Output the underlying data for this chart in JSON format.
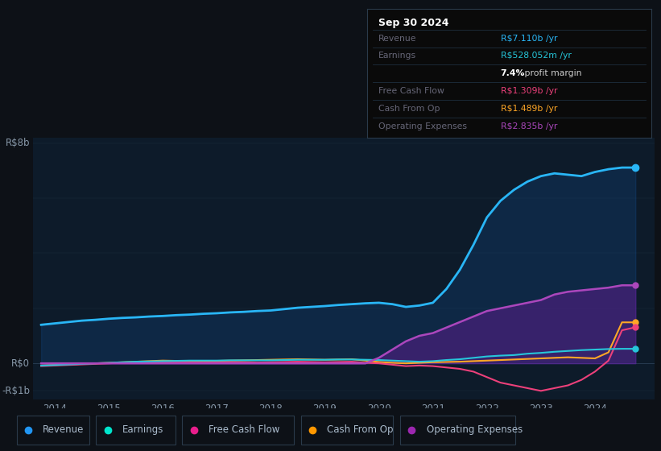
{
  "bg_color": "#0d1117",
  "plot_bg_color": "#0d1b2a",
  "title_box": {
    "date": "Sep 30 2024",
    "rows": [
      {
        "label": "Revenue",
        "value": "R$7.110b /yr",
        "value_color": "#2196f3"
      },
      {
        "label": "Earnings",
        "value": "R$528.052m /yr",
        "value_color": "#00e5cc"
      },
      {
        "label": "",
        "value": "7.4% profit margin",
        "value_color": "#ffffff"
      },
      {
        "label": "Free Cash Flow",
        "value": "R$1.309b /yr",
        "value_color": "#e91e8c"
      },
      {
        "label": "Cash From Op",
        "value": "R$1.489b /yr",
        "value_color": "#ff9800"
      },
      {
        "label": "Operating Expenses",
        "value": "R$2.835b /yr",
        "value_color": "#9c27b0"
      }
    ]
  },
  "ylabel_text": "R$8b",
  "ylabel0_text": "R$0",
  "ylabel_neg_text": "-R$1b",
  "x_ticks": [
    "2014",
    "2015",
    "2016",
    "2017",
    "2018",
    "2019",
    "2020",
    "2021",
    "2022",
    "2023",
    "2024"
  ],
  "legend": [
    {
      "label": "Revenue",
      "color": "#2196f3"
    },
    {
      "label": "Earnings",
      "color": "#00e5cc"
    },
    {
      "label": "Free Cash Flow",
      "color": "#e91e8c"
    },
    {
      "label": "Cash From Op",
      "color": "#ff9800"
    },
    {
      "label": "Operating Expenses",
      "color": "#9c27b0"
    }
  ],
  "series": {
    "x": [
      2013.75,
      2014.0,
      2014.25,
      2014.5,
      2014.75,
      2015.0,
      2015.25,
      2015.5,
      2015.75,
      2016.0,
      2016.25,
      2016.5,
      2016.75,
      2017.0,
      2017.25,
      2017.5,
      2017.75,
      2018.0,
      2018.25,
      2018.5,
      2018.75,
      2019.0,
      2019.25,
      2019.5,
      2019.75,
      2020.0,
      2020.25,
      2020.5,
      2020.75,
      2021.0,
      2021.25,
      2021.5,
      2021.75,
      2022.0,
      2022.25,
      2022.5,
      2022.75,
      2023.0,
      2023.25,
      2023.5,
      2023.75,
      2024.0,
      2024.25,
      2024.5,
      2024.75
    ],
    "revenue": [
      1.4,
      1.45,
      1.5,
      1.55,
      1.58,
      1.62,
      1.65,
      1.67,
      1.7,
      1.72,
      1.75,
      1.77,
      1.8,
      1.82,
      1.85,
      1.87,
      1.9,
      1.92,
      1.97,
      2.02,
      2.05,
      2.08,
      2.12,
      2.15,
      2.18,
      2.2,
      2.15,
      2.05,
      2.1,
      2.2,
      2.7,
      3.4,
      4.3,
      5.3,
      5.9,
      6.3,
      6.6,
      6.8,
      6.9,
      6.85,
      6.8,
      6.95,
      7.05,
      7.11,
      7.11
    ],
    "earnings": [
      -0.08,
      -0.06,
      -0.04,
      -0.02,
      0.0,
      0.02,
      0.04,
      0.06,
      0.07,
      0.08,
      0.09,
      0.1,
      0.1,
      0.1,
      0.11,
      0.11,
      0.11,
      0.11,
      0.12,
      0.13,
      0.13,
      0.13,
      0.14,
      0.14,
      0.13,
      0.12,
      0.1,
      0.08,
      0.06,
      0.08,
      0.12,
      0.15,
      0.2,
      0.25,
      0.28,
      0.3,
      0.35,
      0.38,
      0.42,
      0.45,
      0.48,
      0.5,
      0.52,
      0.528,
      0.528
    ],
    "free_cash_flow": [
      -0.1,
      -0.08,
      -0.06,
      -0.04,
      -0.02,
      0.0,
      0.02,
      0.04,
      0.05,
      0.06,
      0.05,
      0.04,
      0.03,
      0.04,
      0.05,
      0.04,
      0.03,
      0.04,
      0.05,
      0.06,
      0.05,
      0.04,
      0.05,
      0.06,
      0.02,
      0.0,
      -0.05,
      -0.1,
      -0.08,
      -0.1,
      -0.15,
      -0.2,
      -0.3,
      -0.5,
      -0.7,
      -0.8,
      -0.9,
      -1.0,
      -0.9,
      -0.8,
      -0.6,
      -0.3,
      0.1,
      1.2,
      1.31
    ],
    "cash_from_op": [
      -0.08,
      -0.06,
      -0.04,
      -0.02,
      0.0,
      0.02,
      0.04,
      0.06,
      0.08,
      0.1,
      0.09,
      0.08,
      0.08,
      0.09,
      0.1,
      0.11,
      0.12,
      0.13,
      0.14,
      0.15,
      0.14,
      0.13,
      0.14,
      0.15,
      0.1,
      0.05,
      0.02,
      0.0,
      0.02,
      0.04,
      0.05,
      0.06,
      0.08,
      0.1,
      0.12,
      0.14,
      0.16,
      0.18,
      0.2,
      0.22,
      0.2,
      0.18,
      0.4,
      1.489,
      1.489
    ],
    "op_expenses": [
      0.0,
      0.0,
      0.0,
      0.0,
      0.0,
      0.0,
      0.0,
      0.0,
      0.0,
      0.0,
      0.0,
      0.0,
      0.0,
      0.0,
      0.0,
      0.0,
      0.0,
      0.0,
      0.0,
      0.0,
      0.0,
      0.0,
      0.0,
      0.0,
      0.0,
      0.2,
      0.5,
      0.8,
      1.0,
      1.1,
      1.3,
      1.5,
      1.7,
      1.9,
      2.0,
      2.1,
      2.2,
      2.3,
      2.5,
      2.6,
      2.65,
      2.7,
      2.75,
      2.835,
      2.835
    ]
  }
}
